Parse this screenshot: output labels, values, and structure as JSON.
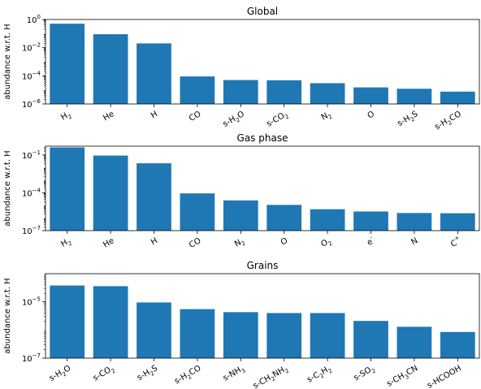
{
  "chart_data": [
    {
      "type": "bar",
      "title": "Global",
      "ylabel": "abundance w.r.t. H",
      "yscale": "log",
      "ylim": [
        1e-06,
        1
      ],
      "yticks": [
        {
          "value": 1,
          "base": "10",
          "exp": "0"
        },
        {
          "value": 0.01,
          "base": "10",
          "exp": "−2"
        },
        {
          "value": 0.0001,
          "base": "10",
          "exp": "−4"
        },
        {
          "value": 1e-06,
          "base": "10",
          "exp": "−6"
        }
      ],
      "categories": [
        {
          "label": "H",
          "sub": "2"
        },
        {
          "label": "He"
        },
        {
          "label": "H"
        },
        {
          "label": "CO"
        },
        {
          "label": "s-H",
          "sub": "2",
          "tail": "O"
        },
        {
          "label": "s-CO",
          "sub": "2"
        },
        {
          "label": "N",
          "sub": "2"
        },
        {
          "label": "O"
        },
        {
          "label": "s-H",
          "sub": "2",
          "tail": "S"
        },
        {
          "label": "s-H",
          "sub": "2",
          "tail": "CO"
        }
      ],
      "values": [
        0.5,
        0.09,
        0.02,
        9e-05,
        5e-05,
        4.8e-05,
        3e-05,
        1.5e-05,
        1.2e-05,
        7.5e-06
      ],
      "color": "#1f77b4"
    },
    {
      "type": "bar",
      "title": "Gas phase",
      "ylabel": "abundance w.r.t. H",
      "yscale": "log",
      "ylim": [
        1e-07,
        0.5
      ],
      "yticks": [
        {
          "value": 0.1,
          "base": "10",
          "exp": "−1"
        },
        {
          "value": 0.0001,
          "base": "10",
          "exp": "−4"
        },
        {
          "value": 1e-07,
          "base": "10",
          "exp": "−7"
        }
      ],
      "categories": [
        {
          "label": "H",
          "sub": "2"
        },
        {
          "label": "He"
        },
        {
          "label": "H"
        },
        {
          "label": "CO"
        },
        {
          "label": "N",
          "sub": "2"
        },
        {
          "label": "O"
        },
        {
          "label": "O",
          "sub": "2"
        },
        {
          "label": "e",
          "sup": "-"
        },
        {
          "label": "N"
        },
        {
          "label": "C",
          "sup": "+"
        }
      ],
      "values": [
        0.4,
        0.09,
        0.022,
        9e-05,
        2.5e-05,
        1.1e-05,
        5e-06,
        3.3e-06,
        2.5e-06,
        2.4e-06
      ],
      "color": "#1f77b4"
    },
    {
      "type": "bar",
      "title": "Grains",
      "ylabel": "abundance w.r.t. H",
      "yscale": "log",
      "ylim": [
        1e-07,
        0.0001
      ],
      "yticks": [
        {
          "value": 1e-05,
          "base": "10",
          "exp": "−5"
        },
        {
          "value": 1e-07,
          "base": "10",
          "exp": "−7"
        }
      ],
      "categories": [
        {
          "label": "s-H",
          "sub": "2",
          "tail": "O"
        },
        {
          "label": "s-CO",
          "sub": "2"
        },
        {
          "label": "s-H",
          "sub": "2",
          "tail": "S"
        },
        {
          "label": "s-H",
          "sub": "2",
          "tail": "CO"
        },
        {
          "label": "s-NH",
          "sub": "3"
        },
        {
          "label": "s-CH",
          "sub": "2",
          "tail": "NH",
          "sub2": "2"
        },
        {
          "label": "s-C",
          "sub": "2",
          "tail": "H",
          "sub2": "2"
        },
        {
          "label": "s-SO",
          "sub": "2"
        },
        {
          "label": "s-CH",
          "sub": "3",
          "tail": "CN"
        },
        {
          "label": "s-HCOOH"
        }
      ],
      "values": [
        3.8e-05,
        3.6e-05,
        9.5e-06,
        5.5e-06,
        4.3e-06,
        4e-06,
        4e-06,
        2.1e-06,
        1.3e-06,
        8.5e-07
      ],
      "color": "#1f77b4"
    }
  ]
}
